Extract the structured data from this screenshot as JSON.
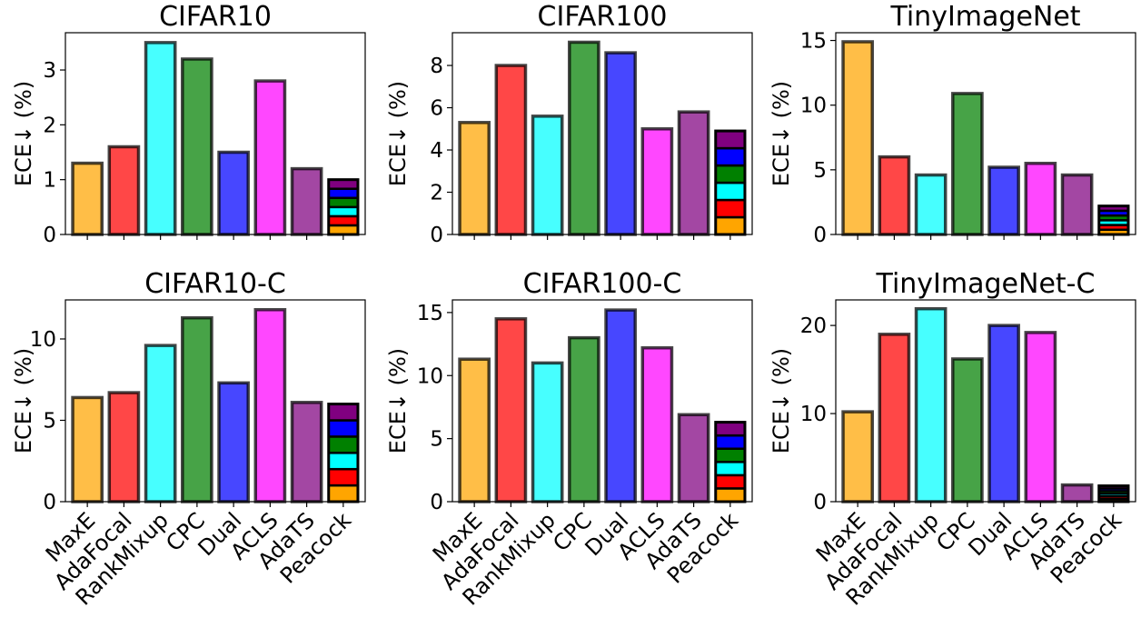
{
  "figure": {
    "categories": [
      "MaxE",
      "AdaFocal",
      "RankMixup",
      "CPC",
      "Dual",
      "ACLS",
      "AdaTS",
      "Peacock"
    ],
    "bar_colors": [
      "#ffa500",
      "#ff0000",
      "#00ffff",
      "#008000",
      "#0000ff",
      "#ff00ff",
      "#800080",
      "#ffffff"
    ],
    "stack_colors": [
      "#ffa500",
      "#ff0000",
      "#00ffff",
      "#008000",
      "#0000ff",
      "#800080"
    ],
    "ylabel": "ECE↓ (%)"
  },
  "chart_data": [
    {
      "type": "bar",
      "title": "CIFAR10",
      "ylabel": "ECE↓ (%)",
      "categories": [
        "MaxE",
        "AdaFocal",
        "RankMixup",
        "CPC",
        "Dual",
        "ACLS",
        "AdaTS",
        "Peacock"
      ],
      "values": [
        1.3,
        1.6,
        3.5,
        3.2,
        1.5,
        2.8,
        1.2,
        1.0
      ],
      "ylim": [
        0,
        3.68
      ],
      "yticks": [
        0,
        1,
        2,
        3
      ],
      "show_xticklabels": false
    },
    {
      "type": "bar",
      "title": "CIFAR100",
      "ylabel": "ECE↓ (%)",
      "categories": [
        "MaxE",
        "AdaFocal",
        "RankMixup",
        "CPC",
        "Dual",
        "ACLS",
        "AdaTS",
        "Peacock"
      ],
      "values": [
        5.3,
        8.0,
        5.6,
        9.1,
        8.6,
        5.0,
        5.8,
        4.9
      ],
      "ylim": [
        0,
        9.55
      ],
      "yticks": [
        0,
        2,
        4,
        6,
        8
      ],
      "show_xticklabels": false
    },
    {
      "type": "bar",
      "title": "TinyImageNet",
      "ylabel": "ECE↓ (%)",
      "categories": [
        "MaxE",
        "AdaFocal",
        "RankMixup",
        "CPC",
        "Dual",
        "ACLS",
        "AdaTS",
        "Peacock"
      ],
      "values": [
        14.9,
        6.0,
        4.6,
        10.9,
        5.2,
        5.5,
        4.6,
        2.2
      ],
      "ylim": [
        0,
        15.6
      ],
      "yticks": [
        0,
        5,
        10,
        15
      ],
      "show_xticklabels": false
    },
    {
      "type": "bar",
      "title": "CIFAR10-C",
      "ylabel": "ECE↓ (%)",
      "categories": [
        "MaxE",
        "AdaFocal",
        "RankMixup",
        "CPC",
        "Dual",
        "ACLS",
        "AdaTS",
        "Peacock"
      ],
      "values": [
        6.4,
        6.7,
        9.6,
        11.3,
        7.3,
        11.8,
        6.1,
        6.0
      ],
      "ylim": [
        0,
        12.4
      ],
      "yticks": [
        0,
        5,
        10
      ],
      "show_xticklabels": true
    },
    {
      "type": "bar",
      "title": "CIFAR100-C",
      "ylabel": "ECE↓ (%)",
      "categories": [
        "MaxE",
        "AdaFocal",
        "RankMixup",
        "CPC",
        "Dual",
        "ACLS",
        "AdaTS",
        "Peacock"
      ],
      "values": [
        11.3,
        14.5,
        11.0,
        13.0,
        15.2,
        12.2,
        6.9,
        6.3
      ],
      "ylim": [
        0,
        16.0
      ],
      "yticks": [
        0,
        5,
        10,
        15
      ],
      "show_xticklabels": true
    },
    {
      "type": "bar",
      "title": "TinyImageNet-C",
      "ylabel": "ECE↓ (%)",
      "categories": [
        "MaxE",
        "AdaFocal",
        "RankMixup",
        "CPC",
        "Dual",
        "ACLS",
        "AdaTS",
        "Peacock"
      ],
      "values": [
        10.2,
        19.0,
        21.9,
        16.2,
        20.0,
        19.2,
        1.9,
        1.8
      ],
      "ylim": [
        0,
        22.9
      ],
      "yticks": [
        0,
        10,
        20
      ],
      "show_xticklabels": true
    }
  ]
}
